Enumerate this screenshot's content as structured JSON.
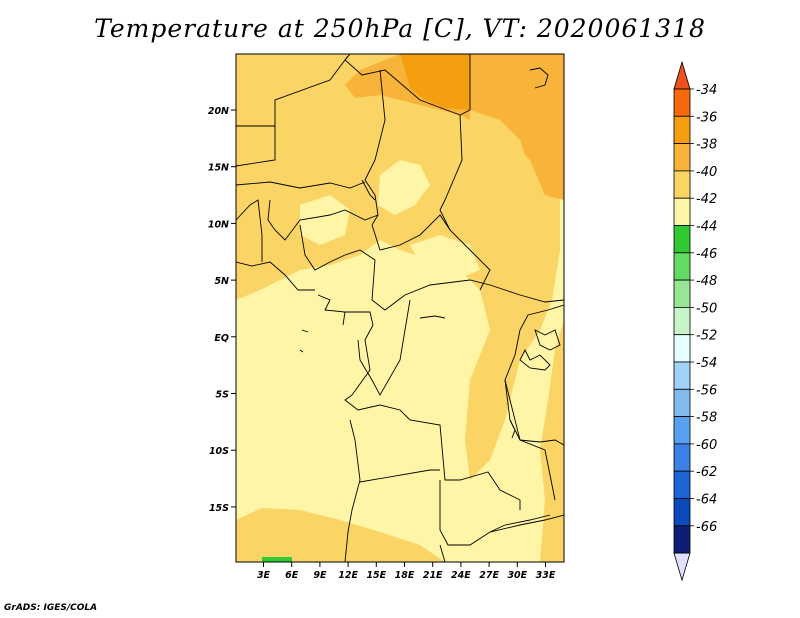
{
  "title": "Temperature at 250hPa [C], VT: 2020061318",
  "credit": "GrADS: IGES/COLA",
  "map": {
    "lon_range": [
      0,
      35
    ],
    "lat_range": [
      -20,
      25
    ],
    "x_ticks": [
      "3E",
      "6E",
      "9E",
      "12E",
      "15E",
      "18E",
      "21E",
      "24E",
      "27E",
      "30E",
      "33E"
    ],
    "y_ticks": [
      "20N",
      "15N",
      "10N",
      "5N",
      "EQ",
      "5S",
      "10S",
      "15S"
    ]
  },
  "colorbar": {
    "labels": [
      "-34",
      "-36",
      "-38",
      "-40",
      "-42",
      "-44",
      "-46",
      "-48",
      "-50",
      "-52",
      "-54",
      "-56",
      "-58",
      "-60",
      "-62",
      "-64",
      "-66"
    ],
    "colors": [
      "#f0501e",
      "#f46a0a",
      "#f59e10",
      "#f7b33a",
      "#fad464",
      "#fef5a6",
      "#32c832",
      "#62db62",
      "#96e696",
      "#c8f5c8",
      "#e6ffff",
      "#a0d2fa",
      "#82baf0",
      "#5aa0f0",
      "#3c82e6",
      "#1e64d2",
      "#0a4abc",
      "#0c1e78",
      "#e1e1ff"
    ]
  }
}
